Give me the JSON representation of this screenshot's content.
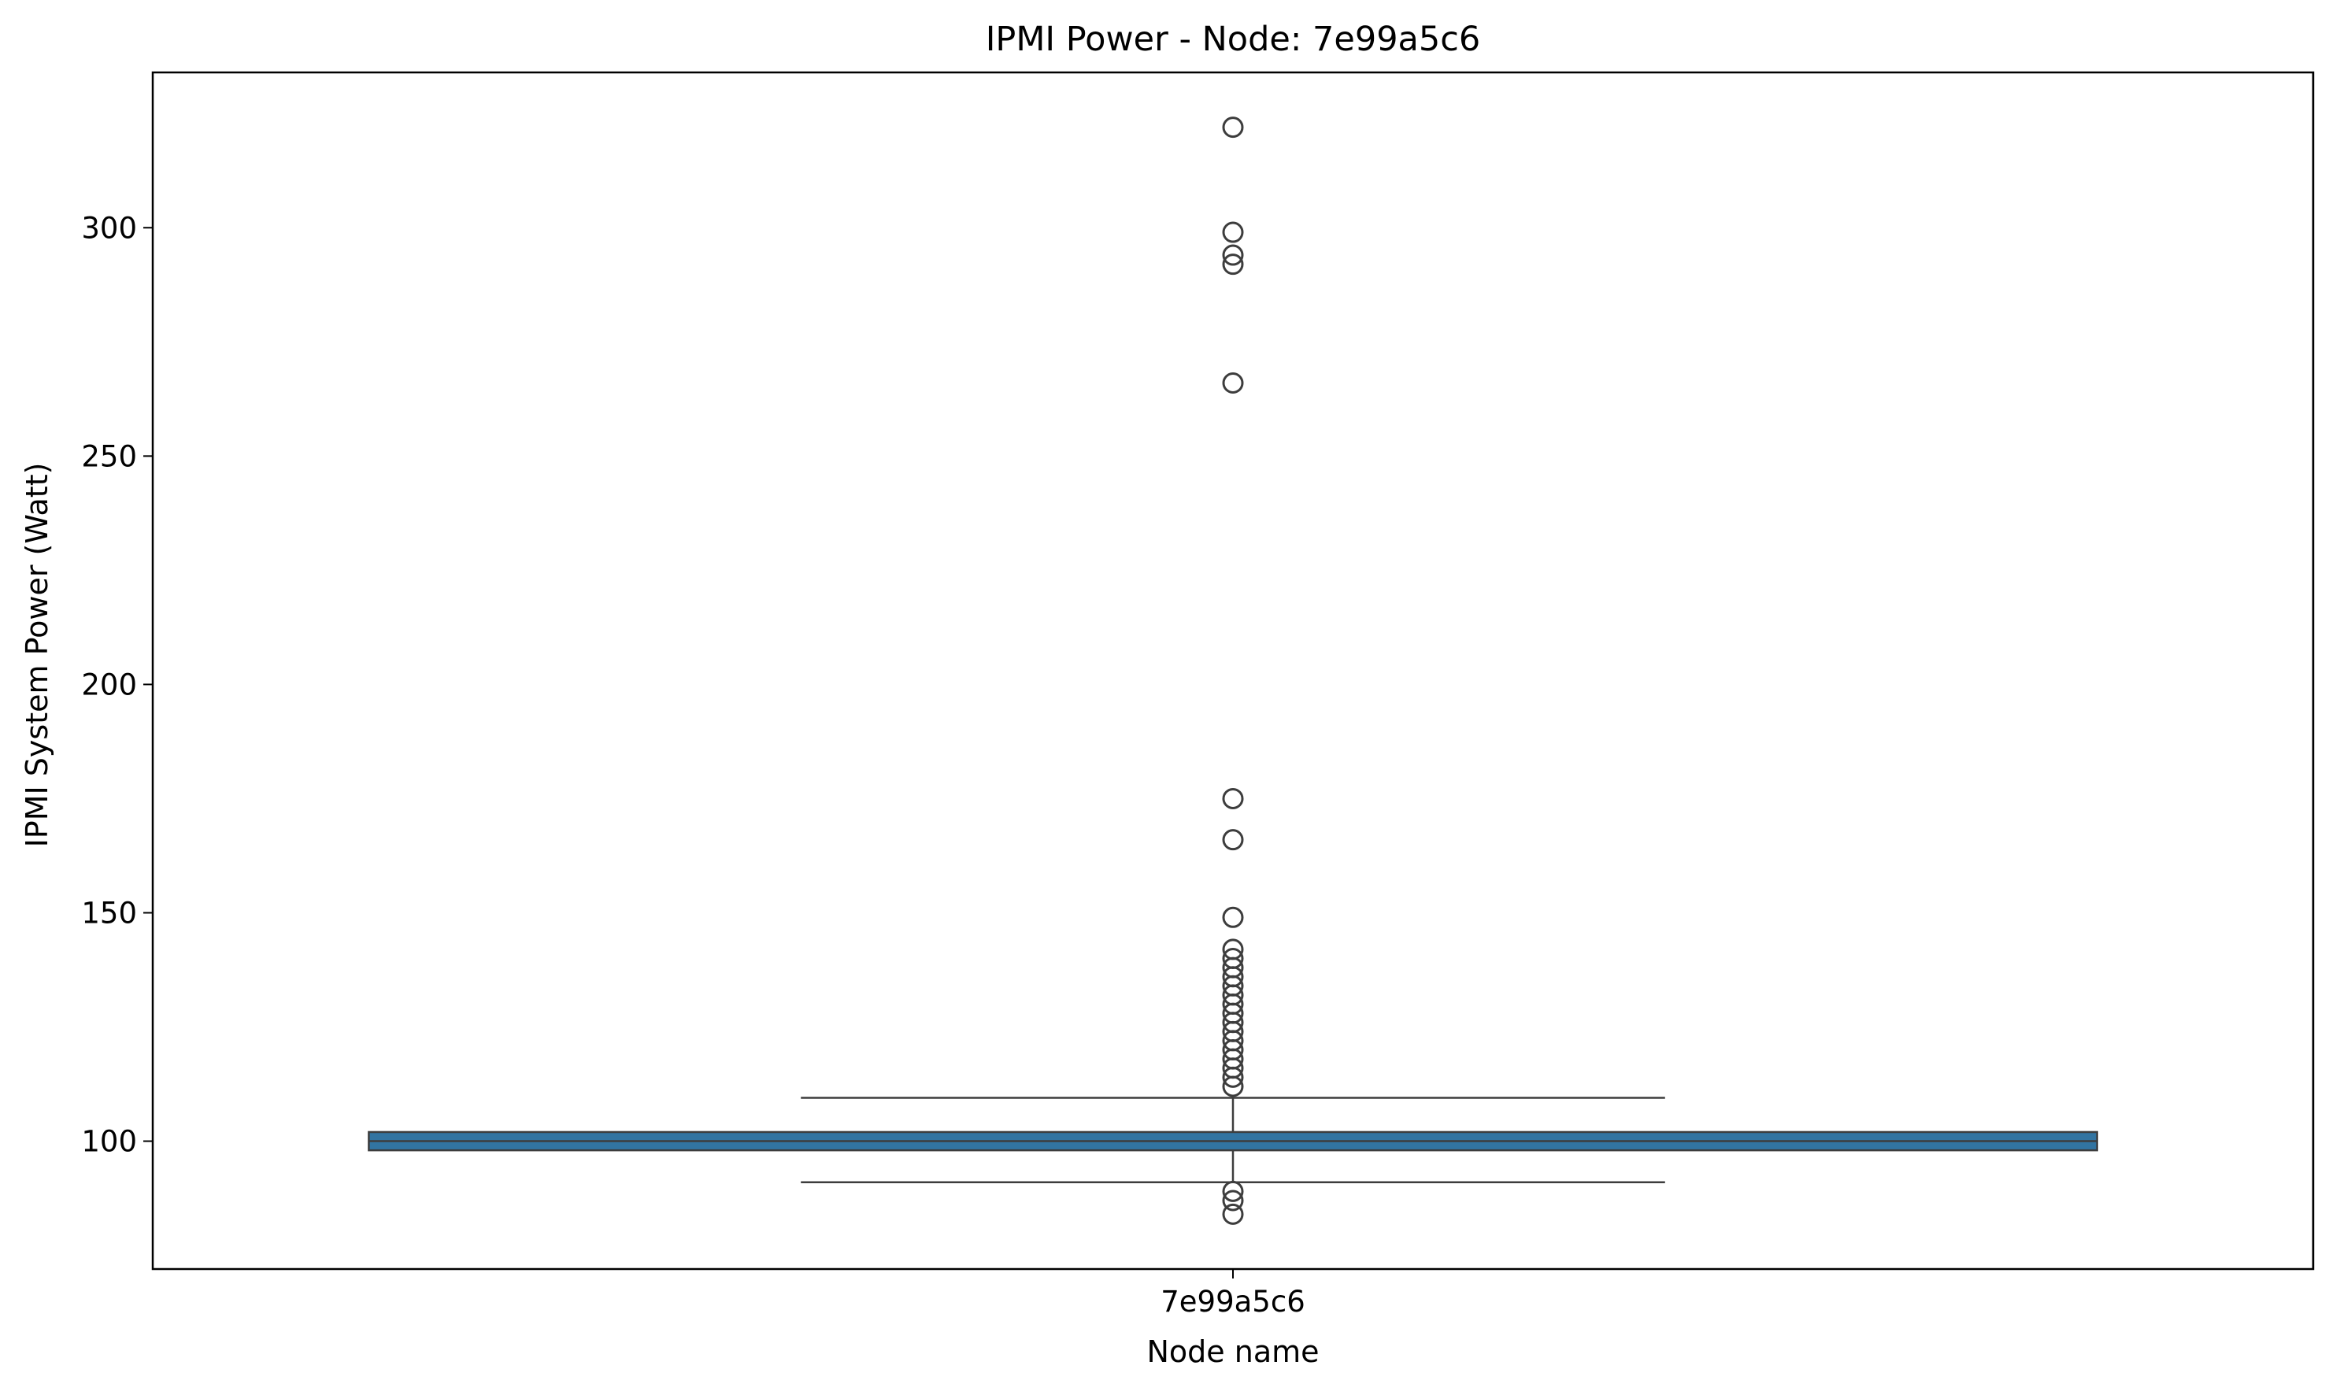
{
  "chart_data": {
    "type": "box",
    "title": "IPMI Power - Node: 7e99a5c6",
    "xlabel": "Node name",
    "ylabel": "IPMI System Power (Watt)",
    "categories": [
      "7e99a5c6"
    ],
    "ylim": [
      72,
      334
    ],
    "yticks": [
      100,
      150,
      200,
      250,
      300
    ],
    "grid": false,
    "legend": "none",
    "box_color": "#3274a1",
    "line_color": "#3d3d3d",
    "boxes": [
      {
        "category": "7e99a5c6",
        "whisker_low": 91,
        "q1": 98,
        "median": 100,
        "q3": 102,
        "whisker_high": 109.5,
        "outliers": [
          322,
          299,
          294,
          292,
          266,
          175,
          166,
          149,
          142,
          140,
          138,
          136,
          134,
          132,
          130,
          128,
          126,
          124,
          122,
          120,
          118,
          116,
          114,
          112,
          89,
          87,
          84
        ]
      }
    ]
  }
}
